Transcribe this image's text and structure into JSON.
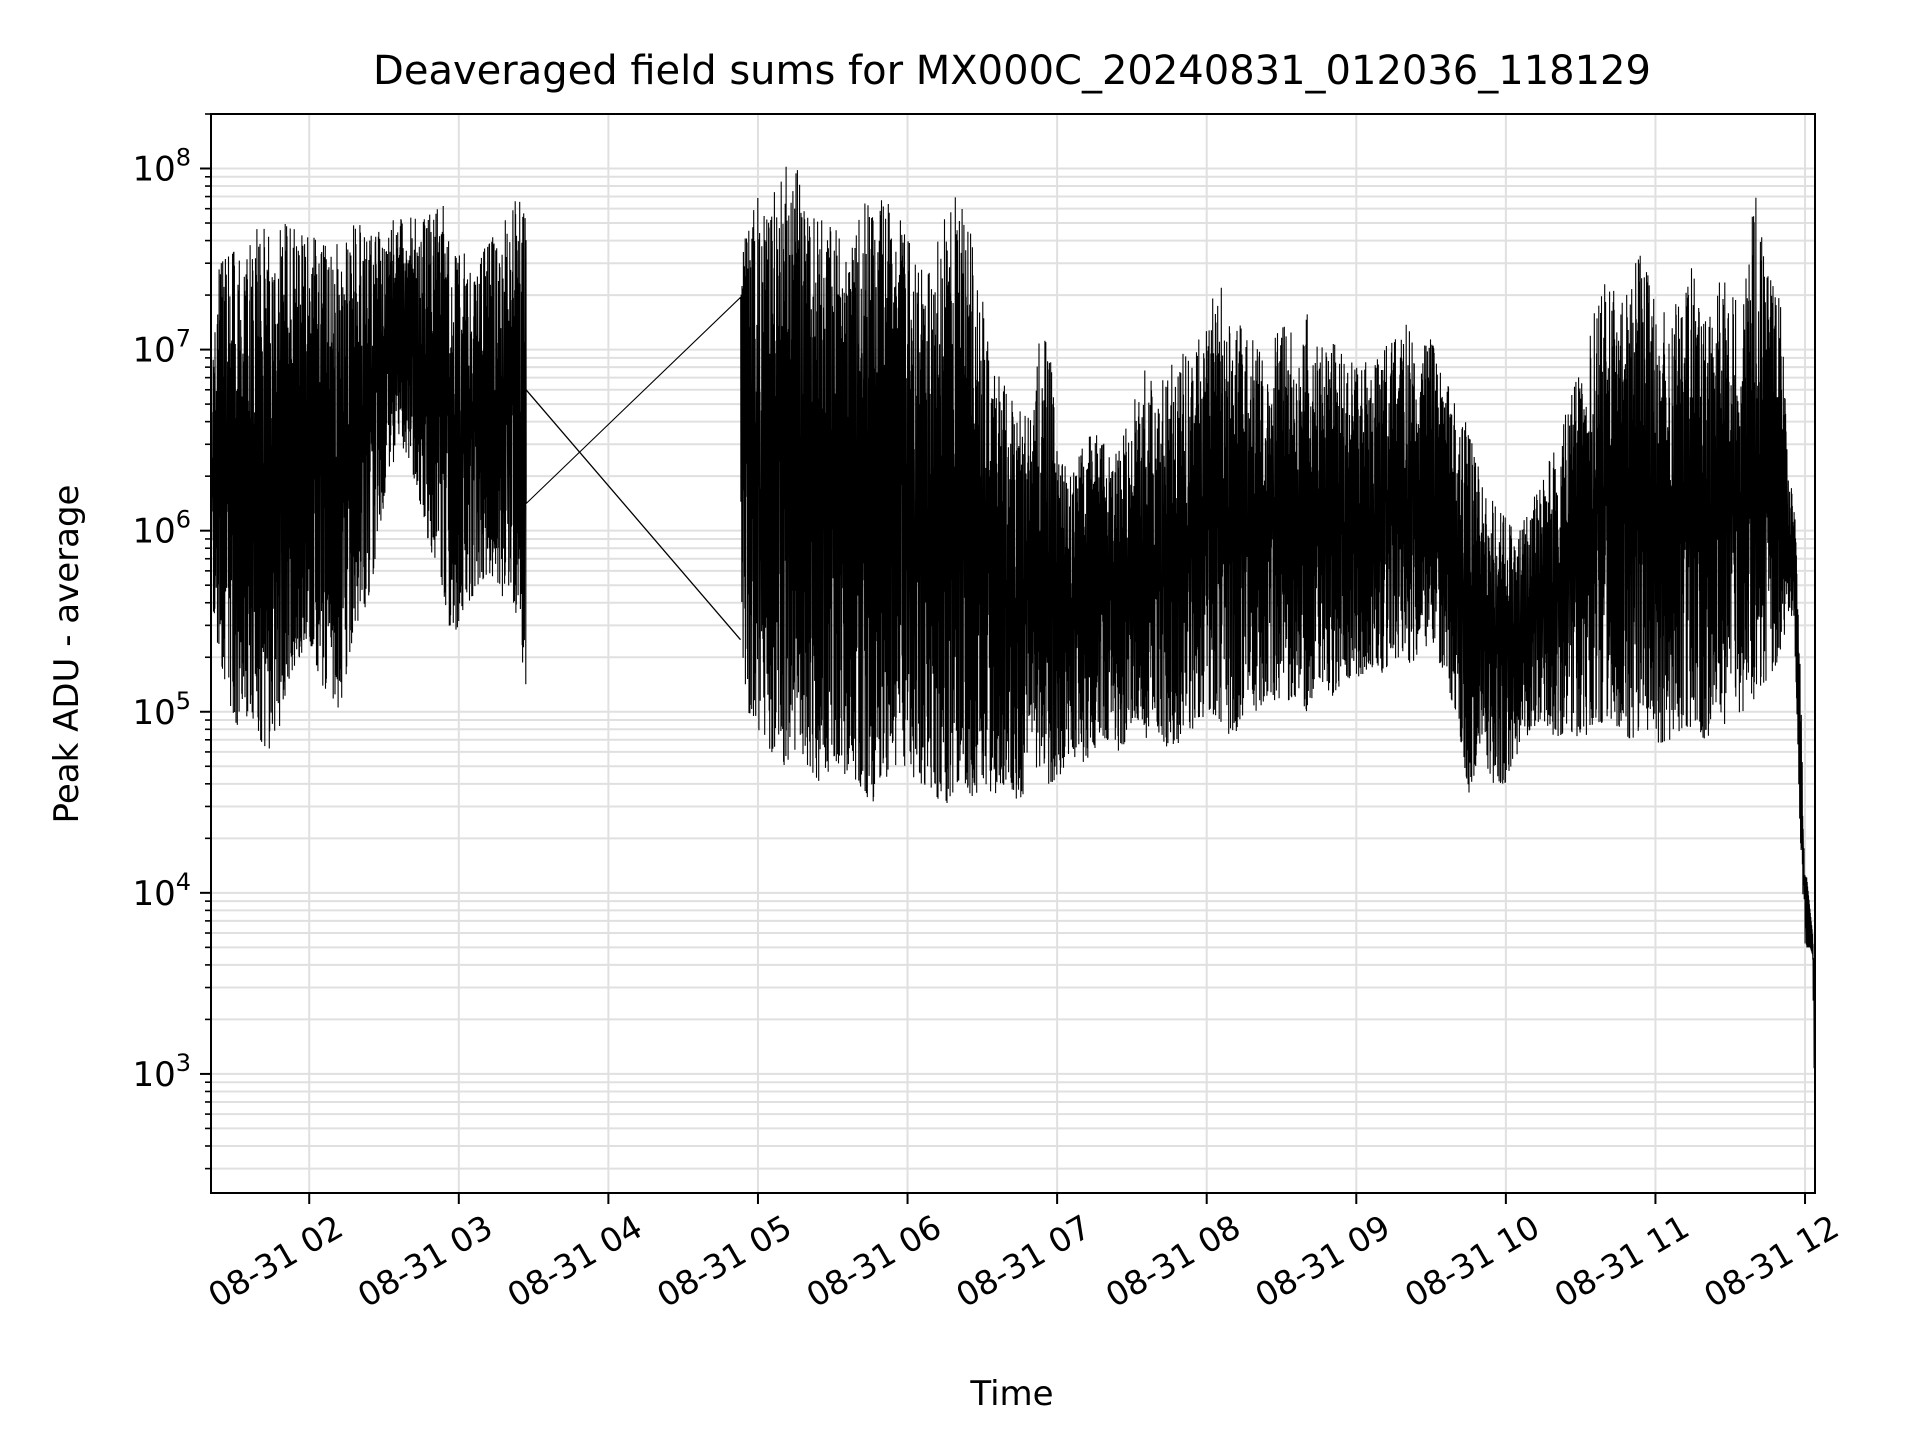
{
  "chart_data": {
    "type": "line",
    "title": "Deaveraged field sums for MX000C_20240831_012036_118129",
    "xlabel": "Time",
    "ylabel": "Peak ADU - average",
    "yscale": "log",
    "xlim": [
      "2024-08-31T01:20:36",
      "2024-08-31T12:04:00"
    ],
    "ylim": [
      220,
      200000000
    ],
    "grid": "on (major and minor, light gray)",
    "line_color": "#000000",
    "grid_color": "#e0e0e0",
    "x_ticks": [
      {
        "t": "2024-08-31T02:00:00",
        "label": "08-31 02"
      },
      {
        "t": "2024-08-31T03:00:00",
        "label": "08-31 03"
      },
      {
        "t": "2024-08-31T04:00:00",
        "label": "08-31 04"
      },
      {
        "t": "2024-08-31T05:00:00",
        "label": "08-31 05"
      },
      {
        "t": "2024-08-31T06:00:00",
        "label": "08-31 06"
      },
      {
        "t": "2024-08-31T07:00:00",
        "label": "08-31 07"
      },
      {
        "t": "2024-08-31T08:00:00",
        "label": "08-31 08"
      },
      {
        "t": "2024-08-31T09:00:00",
        "label": "08-31 09"
      },
      {
        "t": "2024-08-31T10:00:00",
        "label": "08-31 10"
      },
      {
        "t": "2024-08-31T11:00:00",
        "label": "08-31 11"
      },
      {
        "t": "2024-08-31T12:00:00",
        "label": "08-31 12"
      }
    ],
    "y_ticks": [
      {
        "value": 1000,
        "base": "10",
        "exp": "3"
      },
      {
        "value": 10000,
        "base": "10",
        "exp": "4"
      },
      {
        "value": 100000,
        "base": "10",
        "exp": "5"
      },
      {
        "value": 1000000,
        "base": "10",
        "exp": "6"
      },
      {
        "value": 10000000,
        "base": "10",
        "exp": "7"
      },
      {
        "value": 100000000,
        "base": "10",
        "exp": "8"
      }
    ],
    "series": [
      {
        "x": [
          "2024-08-31T01:20:36",
          "2024-08-31T01:24:00",
          "2024-08-31T01:28:00",
          "2024-08-31T01:32:00",
          "2024-08-31T01:36:00",
          "2024-08-31T01:40:00",
          "2024-08-31T01:44:00",
          "2024-08-31T01:48:00",
          "2024-08-31T01:52:00",
          "2024-08-31T01:56:00",
          "2024-08-31T02:00:00",
          "2024-08-31T02:04:00",
          "2024-08-31T02:08:00",
          "2024-08-31T02:12:00",
          "2024-08-31T02:16:00",
          "2024-08-31T02:20:00",
          "2024-08-31T02:24:00",
          "2024-08-31T02:28:00",
          "2024-08-31T02:32:00",
          "2024-08-31T02:36:00",
          "2024-08-31T02:40:00",
          "2024-08-31T02:44:00",
          "2024-08-31T02:48:00",
          "2024-08-31T02:52:00",
          "2024-08-31T02:56:00",
          "2024-08-31T03:00:00",
          "2024-08-31T03:04:00",
          "2024-08-31T03:08:00",
          "2024-08-31T03:12:00",
          "2024-08-31T03:16:00",
          "2024-08-31T03:20:00",
          "2024-08-31T03:24:00",
          "2024-08-31T03:27:00",
          "2024-08-31T04:53:00",
          "2024-08-31T04:56:00",
          "2024-08-31T05:00:00",
          "2024-08-31T05:05:00",
          "2024-08-31T05:10:00",
          "2024-08-31T05:15:00",
          "2024-08-31T05:20:00",
          "2024-08-31T05:25:00",
          "2024-08-31T05:30:00",
          "2024-08-31T05:35:00",
          "2024-08-31T05:40:00",
          "2024-08-31T05:45:00",
          "2024-08-31T05:50:00",
          "2024-08-31T05:55:00",
          "2024-08-31T06:00:00",
          "2024-08-31T06:05:00",
          "2024-08-31T06:10:00",
          "2024-08-31T06:15:00",
          "2024-08-31T06:20:00",
          "2024-08-31T06:25:00",
          "2024-08-31T06:30:00",
          "2024-08-31T06:35:00",
          "2024-08-31T06:40:00",
          "2024-08-31T06:45:00",
          "2024-08-31T06:50:00",
          "2024-08-31T06:55:00",
          "2024-08-31T07:00:00",
          "2024-08-31T07:05:00",
          "2024-08-31T07:10:00",
          "2024-08-31T07:15:00",
          "2024-08-31T07:20:00",
          "2024-08-31T07:25:00",
          "2024-08-31T07:30:00",
          "2024-08-31T07:35:00",
          "2024-08-31T07:40:00",
          "2024-08-31T07:45:00",
          "2024-08-31T07:50:00",
          "2024-08-31T07:55:00",
          "2024-08-31T08:00:00",
          "2024-08-31T08:05:00",
          "2024-08-31T08:10:00",
          "2024-08-31T08:15:00",
          "2024-08-31T08:20:00",
          "2024-08-31T08:25:00",
          "2024-08-31T08:30:00",
          "2024-08-31T08:35:00",
          "2024-08-31T08:40:00",
          "2024-08-31T08:45:00",
          "2024-08-31T08:50:00",
          "2024-08-31T08:55:00",
          "2024-08-31T09:00:00",
          "2024-08-31T09:05:00",
          "2024-08-31T09:10:00",
          "2024-08-31T09:15:00",
          "2024-08-31T09:20:00",
          "2024-08-31T09:25:00",
          "2024-08-31T09:30:00",
          "2024-08-31T09:35:00",
          "2024-08-31T09:40:00",
          "2024-08-31T09:45:00",
          "2024-08-31T09:50:00",
          "2024-08-31T09:55:00",
          "2024-08-31T10:00:00",
          "2024-08-31T10:05:00",
          "2024-08-31T10:10:00",
          "2024-08-31T10:15:00",
          "2024-08-31T10:20:00",
          "2024-08-31T10:25:00",
          "2024-08-31T10:30:00",
          "2024-08-31T10:35:00",
          "2024-08-31T10:40:00",
          "2024-08-31T10:45:00",
          "2024-08-31T10:50:00",
          "2024-08-31T10:55:00",
          "2024-08-31T11:00:00",
          "2024-08-31T11:05:00",
          "2024-08-31T11:10:00",
          "2024-08-31T11:15:00",
          "2024-08-31T11:20:00",
          "2024-08-31T11:25:00",
          "2024-08-31T11:30:00",
          "2024-08-31T11:35:00",
          "2024-08-31T11:40:00",
          "2024-08-31T11:45:00",
          "2024-08-31T11:50:00",
          "2024-08-31T11:54:00",
          "2024-08-31T11:56:00",
          "2024-08-31T11:58:00",
          "2024-08-31T12:00:00",
          "2024-08-31T12:02:00",
          "2024-08-31T12:03:00",
          "2024-08-31T12:04:00"
        ],
        "y_upper": [
          6000000,
          30000000,
          40000000,
          35000000,
          45000000,
          48000000,
          45000000,
          50000000,
          52000000,
          48000000,
          45000000,
          40000000,
          38000000,
          45000000,
          50000000,
          52000000,
          50000000,
          48000000,
          52000000,
          55000000,
          58000000,
          60000000,
          62000000,
          65000000,
          60000000,
          40000000,
          30000000,
          35000000,
          40000000,
          45000000,
          60000000,
          70000000,
          72000000,
          30000000,
          50000000,
          90000000,
          95000000,
          100000000,
          110000000,
          70000000,
          60000000,
          50000000,
          40000000,
          70000000,
          75000000,
          70000000,
          60000000,
          50000000,
          40000000,
          30000000,
          60000000,
          90000000,
          50000000,
          20000000,
          8000000,
          6000000,
          5000000,
          4000000,
          25000000,
          3000000,
          2000000,
          3000000,
          4000000,
          3000000,
          3000000,
          5000000,
          8000000,
          6000000,
          9000000,
          10000000,
          12000000,
          15000000,
          25000000,
          12000000,
          15000000,
          12000000,
          10000000,
          14000000,
          12000000,
          20000000,
          10000000,
          12000000,
          10000000,
          8000000,
          9000000,
          10000000,
          12000000,
          15000000,
          10000000,
          12000000,
          8000000,
          5000000,
          4000000,
          2000000,
          1500000,
          1200000,
          1000000,
          1500000,
          2000000,
          3000000,
          5000000,
          8000000,
          15000000,
          30000000,
          20000000,
          25000000,
          40000000,
          20000000,
          15000000,
          20000000,
          30000000,
          15000000,
          30000000,
          20000000,
          20000000,
          75000000,
          30000000,
          20000000,
          2000000,
          1200000,
          200000,
          15000,
          8000,
          6000,
          3000
        ],
        "y_lower": [
          400000,
          200000,
          100000,
          80000,
          100000,
          70000,
          60000,
          80000,
          150000,
          200000,
          250000,
          150000,
          120000,
          100000,
          200000,
          300000,
          400000,
          1000000,
          2000000,
          3000000,
          2500000,
          1500000,
          800000,
          600000,
          300000,
          250000,
          400000,
          500000,
          600000,
          400000,
          500000,
          300000,
          110000,
          250000,
          100000,
          80000,
          60000,
          50000,
          60000,
          50000,
          40000,
          50000,
          45000,
          40000,
          30000,
          40000,
          50000,
          45000,
          40000,
          35000,
          30000,
          40000,
          35000,
          30000,
          35000,
          40000,
          30000,
          50000,
          40000,
          40000,
          60000,
          50000,
          60000,
          70000,
          60000,
          80000,
          70000,
          80000,
          60000,
          70000,
          80000,
          100000,
          90000,
          70000,
          90000,
          100000,
          120000,
          110000,
          120000,
          100000,
          150000,
          120000,
          150000,
          140000,
          180000,
          160000,
          200000,
          180000,
          200000,
          250000,
          150000,
          100000,
          35000,
          60000,
          40000,
          40000,
          60000,
          80000,
          90000,
          70000,
          80000,
          70000,
          80000,
          90000,
          80000,
          70000,
          80000,
          70000,
          60000,
          80000,
          80000,
          70000,
          80000,
          90000,
          100000,
          120000,
          150000,
          200000,
          400000,
          200000,
          20000,
          5000,
          5000,
          4500,
          250
        ]
      }
    ]
  }
}
